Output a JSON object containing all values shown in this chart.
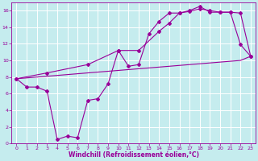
{
  "xlabel": "Windchill (Refroidissement éolien,°C)",
  "line_color": "#990099",
  "bg_color": "#c5ecee",
  "grid_color": "#ffffff",
  "xlim": [
    -0.5,
    23.5
  ],
  "ylim": [
    0,
    17
  ],
  "xticks": [
    0,
    1,
    2,
    3,
    4,
    5,
    6,
    7,
    8,
    9,
    10,
    11,
    12,
    13,
    14,
    15,
    16,
    17,
    18,
    19,
    20,
    21,
    22,
    23
  ],
  "yticks": [
    0,
    2,
    4,
    6,
    8,
    10,
    12,
    14,
    16
  ],
  "line1_x": [
    0,
    1,
    2,
    3,
    4,
    5,
    6,
    7,
    8,
    9,
    10,
    11,
    12,
    13,
    14,
    15,
    16,
    17,
    18,
    19,
    20,
    21,
    22,
    23
  ],
  "line1_y": [
    7.8,
    6.8,
    6.8,
    6.3,
    0.5,
    0.9,
    0.7,
    5.2,
    5.4,
    7.2,
    11.2,
    9.3,
    9.5,
    13.2,
    14.7,
    15.7,
    15.7,
    16.0,
    16.5,
    15.8,
    15.8,
    15.8,
    11.9,
    10.5
  ],
  "line2_x": [
    0,
    3,
    7,
    10,
    12,
    14,
    15,
    16,
    17,
    18,
    19,
    20,
    21,
    22,
    23
  ],
  "line2_y": [
    7.8,
    8.5,
    9.5,
    11.2,
    11.2,
    13.5,
    14.5,
    15.7,
    15.9,
    16.2,
    16.0,
    15.8,
    15.8,
    15.7,
    10.5
  ],
  "line3_x": [
    0,
    1,
    2,
    3,
    4,
    5,
    6,
    7,
    8,
    9,
    10,
    11,
    12,
    13,
    14,
    15,
    16,
    17,
    18,
    19,
    20,
    21,
    22,
    23
  ],
  "line3_y": [
    7.8,
    7.9,
    8.0,
    8.1,
    8.2,
    8.3,
    8.4,
    8.5,
    8.6,
    8.7,
    8.8,
    8.9,
    9.0,
    9.1,
    9.2,
    9.3,
    9.4,
    9.5,
    9.6,
    9.7,
    9.8,
    9.9,
    10.0,
    10.5
  ],
  "markersize": 2,
  "linewidth": 0.8,
  "xlabel_fontsize": 5.5,
  "tick_fontsize": 4.5
}
